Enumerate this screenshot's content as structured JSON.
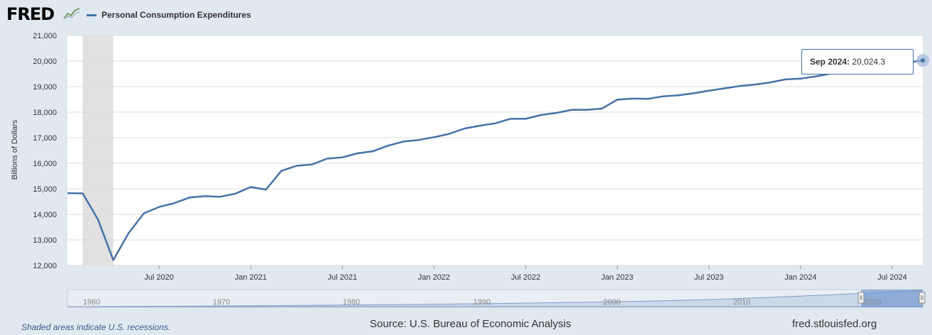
{
  "brand": {
    "logo": "FRED",
    "logo_icon": "fred-chart-icon"
  },
  "legend": {
    "label": "Personal Consumption Expenditures",
    "color": "#4572a7"
  },
  "tooltip": {
    "date": "Sep 2024:",
    "value": "20,024.3"
  },
  "footer": {
    "note": "Shaded areas indicate U.S. recessions.",
    "source": "Source: U.S. Bureau of Economic Analysis",
    "url": "fred.stlouisfed.org"
  },
  "navigator": {
    "labels": [
      "1960",
      "1970",
      "1980",
      "1990",
      "2000",
      "2010",
      "2020"
    ]
  },
  "chart_data": {
    "type": "line",
    "title": "",
    "ylabel": "Billions of Dollars",
    "ylim": [
      12000,
      21000
    ],
    "y_ticks": [
      "12,000",
      "13,000",
      "14,000",
      "15,000",
      "16,000",
      "17,000",
      "18,000",
      "19,000",
      "20,000",
      "21,000"
    ],
    "x_ticks": [
      "Jul 2020",
      "Jan 2021",
      "Jul 2021",
      "Jan 2022",
      "Jul 2022",
      "Jan 2023",
      "Jul 2023",
      "Jan 2024",
      "Jul 2024"
    ],
    "xlim": [
      "2020-01",
      "2024-09"
    ],
    "recession": [
      "2020-02",
      "2020-04"
    ],
    "grid": true,
    "series": [
      {
        "name": "Personal Consumption Expenditures",
        "color": "#4572a7",
        "x": [
          "2020-01",
          "2020-02",
          "2020-03",
          "2020-04",
          "2020-05",
          "2020-06",
          "2020-07",
          "2020-08",
          "2020-09",
          "2020-10",
          "2020-11",
          "2020-12",
          "2021-01",
          "2021-02",
          "2021-03",
          "2021-04",
          "2021-05",
          "2021-06",
          "2021-07",
          "2021-08",
          "2021-09",
          "2021-10",
          "2021-11",
          "2021-12",
          "2022-01",
          "2022-02",
          "2022-03",
          "2022-04",
          "2022-05",
          "2022-06",
          "2022-07",
          "2022-08",
          "2022-09",
          "2022-10",
          "2022-11",
          "2022-12",
          "2023-01",
          "2023-02",
          "2023-03",
          "2023-04",
          "2023-05",
          "2023-06",
          "2023-07",
          "2023-08",
          "2023-09",
          "2023-10",
          "2023-11",
          "2023-12",
          "2024-01",
          "2024-02",
          "2024-03",
          "2024-04",
          "2024-05",
          "2024-06",
          "2024-07",
          "2024-08",
          "2024-09"
        ],
        "values": [
          14830,
          14820,
          13800,
          12210,
          13260,
          14040,
          14290,
          14440,
          14660,
          14710,
          14690,
          14810,
          15070,
          14970,
          15700,
          15900,
          15950,
          16180,
          16230,
          16390,
          16470,
          16690,
          16850,
          16910,
          17020,
          17150,
          17360,
          17470,
          17560,
          17740,
          17740,
          17890,
          17970,
          18090,
          18090,
          18140,
          18490,
          18530,
          18520,
          18620,
          18660,
          18740,
          18840,
          18930,
          19020,
          19080,
          19160,
          19280,
          19310,
          19400,
          19510,
          19600,
          19700,
          19790,
          19870,
          19940,
          20024.3
        ]
      }
    ]
  }
}
